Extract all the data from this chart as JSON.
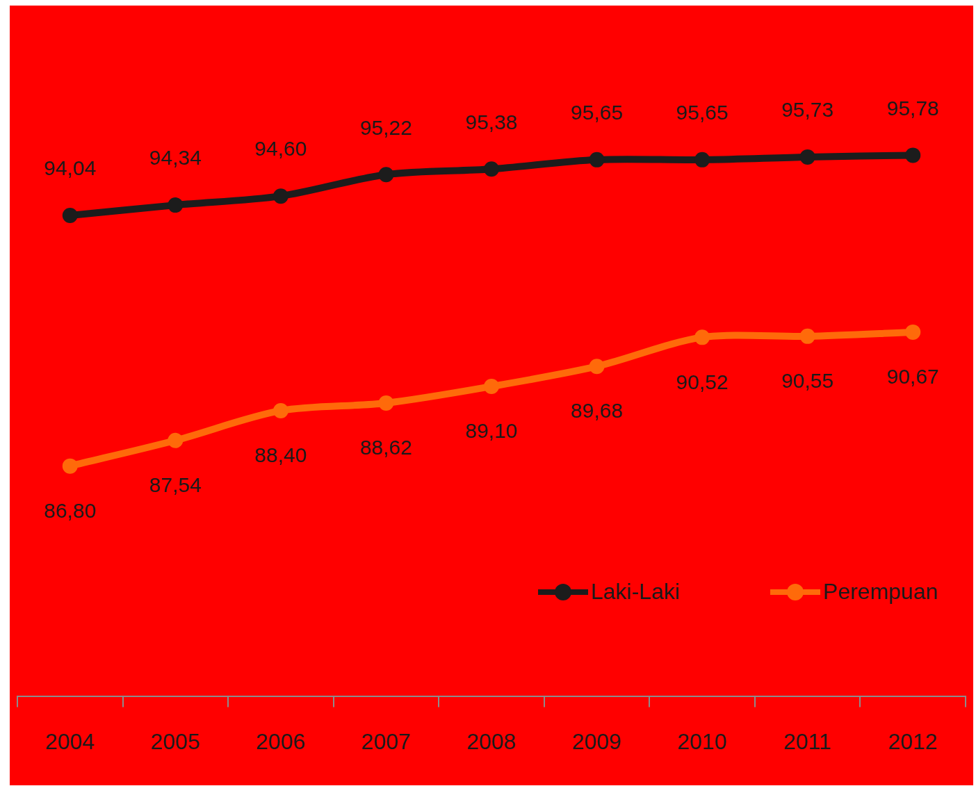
{
  "chart_data": {
    "type": "line",
    "categories": [
      "2004",
      "2005",
      "2006",
      "2007",
      "2008",
      "2009",
      "2010",
      "2011",
      "2012"
    ],
    "series": [
      {
        "name": "Laki-Laki",
        "color": "#1c1c1c",
        "values": [
          94.04,
          94.34,
          94.6,
          95.22,
          95.38,
          95.65,
          95.65,
          95.73,
          95.78
        ],
        "value_labels": [
          "94,04",
          "94,34",
          "94,60",
          "95,22",
          "95,38",
          "95,65",
          "95,65",
          "95,73",
          "95,78"
        ]
      },
      {
        "name": "Perempuan",
        "color": "#ff6a0a",
        "values": [
          86.8,
          87.54,
          88.4,
          88.62,
          89.1,
          89.68,
          90.52,
          90.55,
          90.67
        ],
        "value_labels": [
          "86,80",
          "87,54",
          "88,40",
          "88,62",
          "89,10",
          "89,68",
          "90,52",
          "90,55",
          "90,67"
        ]
      }
    ],
    "marker": "circle",
    "line_style": "solid",
    "legend": "bottom right",
    "grid": false,
    "tick_labels": "x"
  }
}
